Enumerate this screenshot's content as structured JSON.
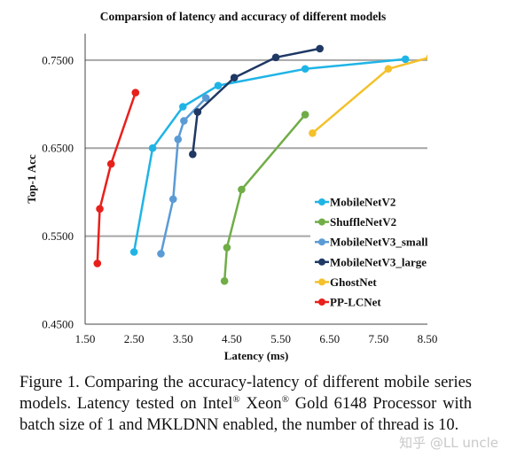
{
  "chart_data": {
    "type": "line",
    "title": "Comparsion of latency and accuracy of different models",
    "xlabel": "Latency (ms)",
    "ylabel": "Top-1 Acc",
    "xlim": [
      1.5,
      8.5
    ],
    "ylim": [
      0.45,
      0.78
    ],
    "xticks": [
      "1.50",
      "2.50",
      "3.50",
      "4.50",
      "5.50",
      "6.50",
      "7.50",
      "8.50"
    ],
    "xtick_values": [
      1.5,
      2.5,
      3.5,
      4.5,
      5.5,
      6.5,
      7.5,
      8.5
    ],
    "yticks": [
      "0.4500",
      "0.5500",
      "0.6500",
      "0.7500"
    ],
    "ytick_values": [
      0.45,
      0.55,
      0.65,
      0.75
    ],
    "grid": "horizontal",
    "legend_position": "right",
    "series": [
      {
        "name": "MobileNetV2",
        "color": "#1fb4e6",
        "points": [
          [
            2.5,
            0.532
          ],
          [
            2.88,
            0.65
          ],
          [
            3.5,
            0.697
          ],
          [
            4.22,
            0.721
          ],
          [
            6.0,
            0.74
          ],
          [
            8.05,
            0.751
          ]
        ]
      },
      {
        "name": "ShuffleNetV2",
        "color": "#70ad47",
        "points": [
          [
            4.35,
            0.499
          ],
          [
            4.4,
            0.537
          ],
          [
            4.7,
            0.603
          ],
          [
            6.0,
            0.688
          ]
        ]
      },
      {
        "name": "MobileNetV3_small",
        "color": "#5b9bd5",
        "points": [
          [
            3.05,
            0.53
          ],
          [
            3.3,
            0.592
          ],
          [
            3.4,
            0.66
          ],
          [
            3.52,
            0.681
          ],
          [
            3.97,
            0.707
          ]
        ]
      },
      {
        "name": "MobileNetV3_large",
        "color": "#1f3864",
        "points": [
          [
            3.7,
            0.643
          ],
          [
            3.8,
            0.691
          ],
          [
            4.55,
            0.73
          ],
          [
            5.4,
            0.753
          ],
          [
            6.3,
            0.763
          ]
        ]
      },
      {
        "name": "GhostNet",
        "color": "#f4c12b",
        "points": [
          [
            6.15,
            0.667
          ],
          [
            7.7,
            0.74
          ],
          [
            8.55,
            0.753
          ]
        ]
      },
      {
        "name": "PP-LCNet",
        "color": "#e8201c",
        "points": [
          [
            1.75,
            0.519
          ],
          [
            1.8,
            0.581
          ],
          [
            2.03,
            0.632
          ],
          [
            2.53,
            0.713
          ]
        ]
      }
    ]
  },
  "caption": {
    "prefix": "Figure 1. Comparing the accuracy-latency of different mobile series models. Latency tested on Intel",
    "reg": "®",
    "mid1": " Xeon",
    "mid2": " Gold 6148 Processor with batch size of 1 and MKLDNN enabled, the number of thread is 10."
  },
  "watermark": "知乎 @LL uncle"
}
